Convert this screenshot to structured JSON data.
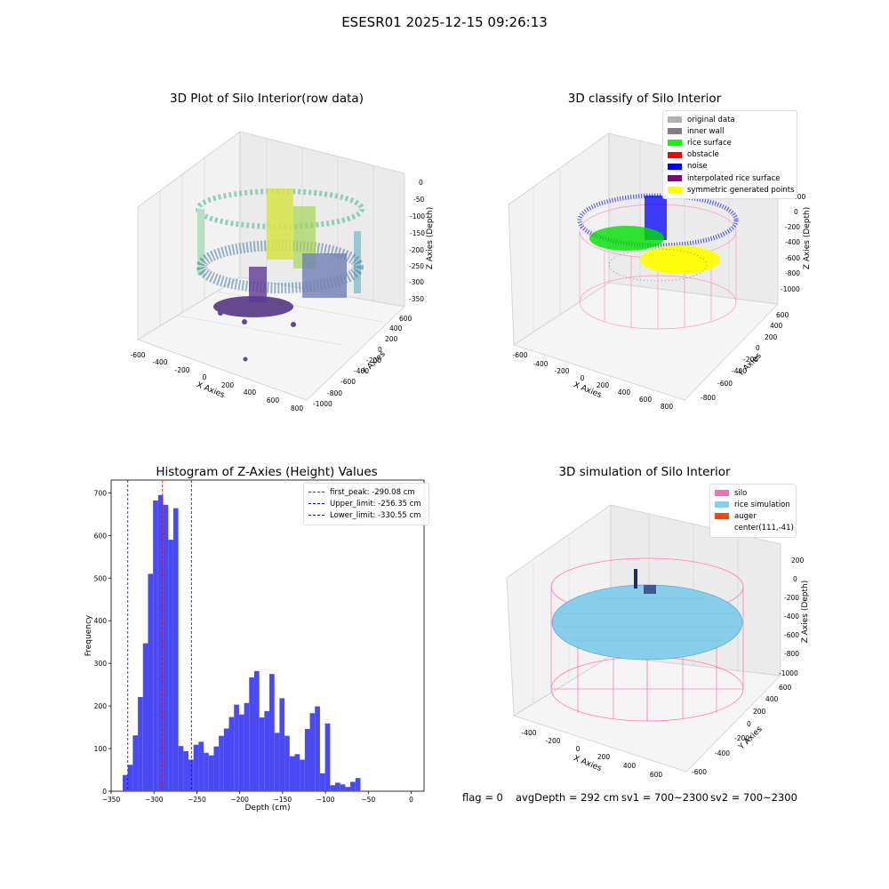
{
  "suptitle": "ESESR01 2025-12-15 09:26:13",
  "panels": {
    "raw": {
      "title": "3D Plot of Silo Interior(row data)",
      "xlabel": "X Axies",
      "ylabel": "Y Axies",
      "zlabel": "Z Axies (Depth)",
      "xticks": [
        "-600",
        "-400",
        "-200",
        "0",
        "200",
        "400",
        "600",
        "800"
      ],
      "yticks": [
        "-1000",
        "-800",
        "-600",
        "-400",
        "-200",
        "0",
        "200",
        "400",
        "600"
      ],
      "zticks": [
        "0",
        "-50",
        "-100",
        "-150",
        "-200",
        "-250",
        "-300",
        "-350"
      ]
    },
    "classify": {
      "title": "3D classify of Silo Interior",
      "xlabel": "X Axies",
      "ylabel": "Y Axies",
      "zlabel": "Z Axies (Depth)",
      "xticks": [
        "-600",
        "-400",
        "-200",
        "0",
        "200",
        "400",
        "600",
        "800"
      ],
      "yticks": [
        "-800",
        "-600",
        "-400",
        "-200",
        "0",
        "200",
        "400",
        "600"
      ],
      "zticks": [
        "200",
        "0",
        "-200",
        "-400",
        "-600",
        "-800",
        "-1000"
      ],
      "legend": [
        {
          "label": "original data",
          "color": "#b0b0b0"
        },
        {
          "label": "inner wall",
          "color": "#808080"
        },
        {
          "label": "rice surface",
          "color": "#00ff00"
        },
        {
          "label": "obstacle",
          "color": "#ff0000"
        },
        {
          "label": "noise",
          "color": "#0000ff"
        },
        {
          "label": "interpolated rice surface",
          "color": "#800080"
        },
        {
          "label": "symmetric generated points",
          "color": "#ffff00"
        }
      ]
    },
    "simulation": {
      "title": "3D simulation of Silo Interior",
      "xlabel": "X Axies",
      "ylabel": "Y Axies",
      "zlabel": "Z Axies (Depth)",
      "xticks": [
        "-400",
        "-200",
        "0",
        "200",
        "400",
        "600"
      ],
      "yticks": [
        "-600",
        "-400",
        "-200",
        "0",
        "200",
        "400",
        "600"
      ],
      "zticks": [
        "200",
        "0",
        "-200",
        "-400",
        "-600",
        "-800",
        "-1000"
      ],
      "legend": [
        {
          "label": "silo",
          "color": "#ff69b4"
        },
        {
          "label": "rice simulation",
          "color": "#87ceeb"
        },
        {
          "label": "auger",
          "color": "#ff4500"
        },
        {
          "label": "center(111,-41)",
          "color": ""
        }
      ]
    }
  },
  "status": {
    "flag": "flag = 0",
    "avg_depth": "avgDepth = 292 cm",
    "sv1": "sv1 = 700~2300",
    "sv2": "sv2 = 700~2300"
  },
  "chart_data": {
    "type": "bar",
    "title": "Histogram of Z-Axies (Height) Values",
    "xlabel": "Depth (cm)",
    "ylabel": "Frequency",
    "xlim": [
      -350,
      15
    ],
    "ylim": [
      0,
      730
    ],
    "xticks": [
      -350,
      -300,
      -250,
      -200,
      -150,
      -100,
      -50,
      0
    ],
    "yticks": [
      0,
      100,
      200,
      300,
      400,
      500,
      600,
      700
    ],
    "bin_width": 5.9,
    "bin_start": -336.5,
    "bar_color": "#4a4af5",
    "values": [
      38,
      62,
      131,
      221,
      347,
      510,
      682,
      695,
      672,
      590,
      664,
      106,
      94,
      74,
      109,
      116,
      90,
      84,
      105,
      130,
      147,
      174,
      203,
      180,
      207,
      267,
      282,
      173,
      188,
      275,
      137,
      218,
      130,
      82,
      87,
      74,
      146,
      183,
      199,
      42,
      159,
      14,
      20,
      16,
      10,
      22,
      31
    ],
    "lines": [
      {
        "label": "first_peak: -290.08 cm",
        "x": -290.08,
        "color": "#ff0000"
      },
      {
        "label": "Upper_limit: -256.35 cm",
        "x": -256.35,
        "color": "#0000ff"
      },
      {
        "label": "Lower_limit: -330.55 cm",
        "x": -330.55,
        "color": "#0000ff"
      }
    ]
  }
}
